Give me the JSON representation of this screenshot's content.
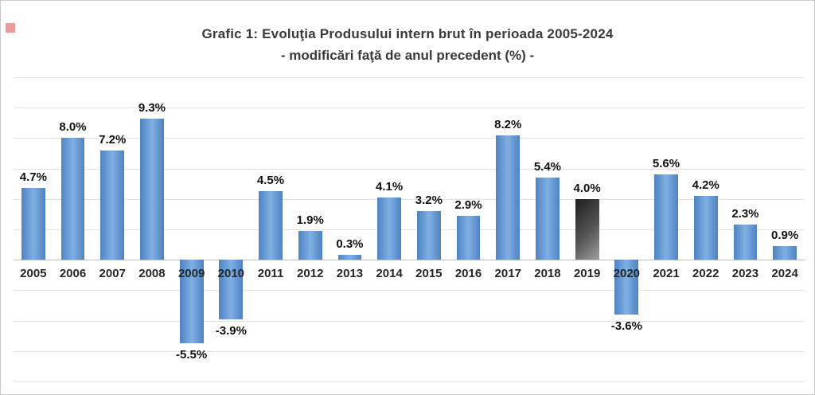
{
  "canvas": {
    "background": "#ffffff",
    "border_color": "#c9c9c9"
  },
  "chart_data": {
    "type": "bar",
    "title": "Grafic 1: Evoluţia Produsului intern brut în perioada 2005-2024",
    "subtitle": "- modificări faţă de anul precedent (%) -",
    "categories": [
      "2005",
      "2006",
      "2007",
      "2008",
      "2009",
      "2010",
      "2011",
      "2012",
      "2013",
      "2014",
      "2015",
      "2016",
      "2017",
      "2018",
      "2019",
      "2020",
      "2021",
      "2022",
      "2023",
      "2024"
    ],
    "values": [
      4.7,
      8.0,
      7.2,
      9.3,
      -5.5,
      -3.9,
      4.5,
      1.9,
      0.3,
      4.1,
      3.2,
      2.9,
      8.2,
      5.4,
      4.0,
      -3.6,
      5.6,
      4.2,
      2.3,
      0.9
    ],
    "labels": [
      "4.7%",
      "8.0%",
      "7.2%",
      "9.3%",
      "-5.5%",
      "-3.9%",
      "4.5%",
      "1.9%",
      "0.3%",
      "4.1%",
      "3.2%",
      "2.9%",
      "8.2%",
      "5.4%",
      "4.0%",
      "-3.6%",
      "5.6%",
      "4.2%",
      "2.3%",
      "0.9%"
    ],
    "highlight_category": "2019",
    "xlabel": "",
    "ylabel": "",
    "ylim": [
      -8,
      12
    ],
    "grid_step": 2,
    "grid_on": true,
    "legend": "none",
    "colors": {
      "bar_edge": "#4e82c2",
      "bar_mid": "#7fb0e4",
      "highlight_dark": "#1f1f1f",
      "highlight_mid": "#555555",
      "highlight_light": "#9e9e9e",
      "gridline": "#e2e2e2",
      "axis_line": "#bfbfbf",
      "value_text": "#111111",
      "year_text": "#262626",
      "title_text": "#3a3a3a"
    }
  }
}
